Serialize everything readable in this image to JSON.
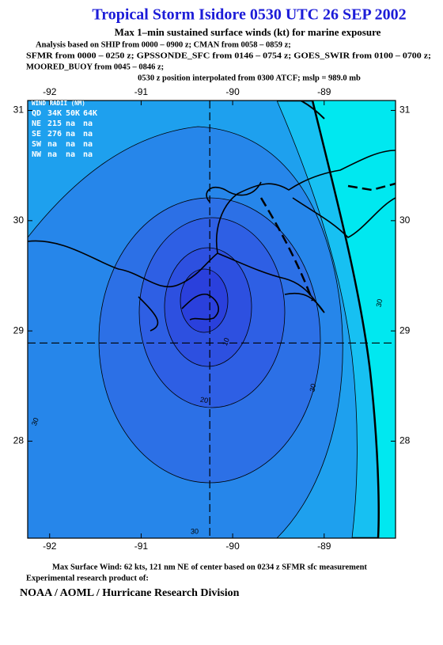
{
  "title": "Tropical Storm Isidore 0530 UTC 26 SEP 2002",
  "subtitle": "Max 1–min sustained surface winds (kt) for marine exposure",
  "analysis_lines": [
    "Analysis based on  SHIP from 0000 – 0900 z;  CMAN from 0058 – 0859 z;",
    "SFMR from 0000 – 0250 z;  GPSSONDE_SFC from 0146 – 0754 z;  GOES_SWIR from 0100 – 0700 z;",
    "MOORED_BUOY from 0045 – 0846 z;"
  ],
  "position_note": "0530 z position interpolated from 0300 ATCF; mslp = 989.0 mb",
  "map": {
    "xlim": [
      -92.24,
      -88.22
    ],
    "ylim": [
      27.12,
      31.09
    ],
    "xticks": [
      -92,
      -91,
      -90,
      -89
    ],
    "yticks": [
      28,
      29,
      30,
      31
    ],
    "center": {
      "lon": -90.25,
      "lat": 28.89
    }
  },
  "wind_radii": {
    "title": "WIND RADII (NM)",
    "rows": [
      [
        "QD",
        "34K",
        "50K",
        "64K"
      ],
      [
        "NE",
        "215",
        "na",
        "na"
      ],
      [
        "SE",
        "276",
        "na",
        "na"
      ],
      [
        "SW",
        "na",
        "na",
        "na"
      ],
      [
        "NW",
        "na",
        "na",
        "na"
      ]
    ]
  },
  "contour_labels": [
    "10",
    "20",
    "30",
    "30",
    "30",
    "30"
  ],
  "footer": {
    "max_wind": "Max Surface Wind: 62 kts, 121 nm NE of center based on 0234 z SFMR sfc measurement",
    "credit": "Experimental research product of:",
    "org": "NOAA / AOML / Hurricane Research Division"
  }
}
